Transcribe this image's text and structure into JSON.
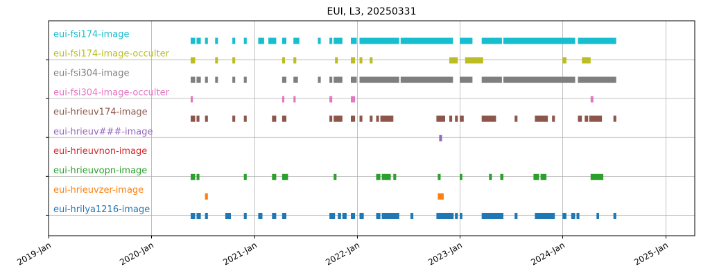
{
  "chart_data": {
    "type": "timeline",
    "title": "EUI, L3, 20250331",
    "xlabel": "",
    "ylabel": "",
    "xlim": [
      "2019-01-01",
      "2025-04-15"
    ],
    "x_ticks": [
      "2019-Jan",
      "2020-Jan",
      "2021-Jan",
      "2022-Jan",
      "2023-Jan",
      "2024-Jan",
      "2025-Jan"
    ],
    "x_tick_dates": [
      "2019-01-01",
      "2020-01-01",
      "2021-01-01",
      "2022-01-01",
      "2023-01-01",
      "2024-01-01",
      "2025-01-01"
    ],
    "grid": true,
    "legend": "labels inside plot, left",
    "series": [
      {
        "name": "eui-fsi174-image",
        "color": "#17becf",
        "intervals": [
          [
            "2020-05-20",
            "2020-06-05"
          ],
          [
            "2020-06-10",
            "2020-06-25"
          ],
          [
            "2020-07-10",
            "2020-07-20"
          ],
          [
            "2020-08-15",
            "2020-08-25"
          ],
          [
            "2020-10-15",
            "2020-10-25"
          ],
          [
            "2020-11-25",
            "2020-12-05"
          ],
          [
            "2021-01-15",
            "2021-02-05"
          ],
          [
            "2021-02-20",
            "2021-03-20"
          ],
          [
            "2021-04-10",
            "2021-04-25"
          ],
          [
            "2021-05-20",
            "2021-06-10"
          ],
          [
            "2021-08-15",
            "2021-08-25"
          ],
          [
            "2021-09-25",
            "2021-10-05"
          ],
          [
            "2021-10-10",
            "2021-11-10"
          ],
          [
            "2021-12-10",
            "2021-12-31"
          ],
          [
            "2022-01-10",
            "2022-05-31"
          ],
          [
            "2022-06-05",
            "2022-12-08"
          ],
          [
            "2023-01-01",
            "2023-02-15"
          ],
          [
            "2023-03-20",
            "2023-05-31"
          ],
          [
            "2023-06-05",
            "2024-02-15"
          ],
          [
            "2024-02-25",
            "2024-07-10"
          ]
        ]
      },
      {
        "name": "eui-fsi174-image-occulter",
        "color": "#bcbd22",
        "intervals": [
          [
            "2020-05-20",
            "2020-06-05"
          ],
          [
            "2020-08-15",
            "2020-08-25"
          ],
          [
            "2020-10-15",
            "2020-10-25"
          ],
          [
            "2021-04-10",
            "2021-04-20"
          ],
          [
            "2021-05-20",
            "2021-05-30"
          ],
          [
            "2021-10-15",
            "2021-10-25"
          ],
          [
            "2021-12-10",
            "2021-12-25"
          ],
          [
            "2022-01-10",
            "2022-01-20"
          ],
          [
            "2022-02-15",
            "2022-02-25"
          ],
          [
            "2022-11-25",
            "2022-12-25"
          ],
          [
            "2023-01-20",
            "2023-03-25"
          ],
          [
            "2024-01-01",
            "2024-01-15"
          ],
          [
            "2024-03-10",
            "2024-04-10"
          ]
        ]
      },
      {
        "name": "eui-fsi304-image",
        "color": "#7f7f7f",
        "intervals": [
          [
            "2020-05-20",
            "2020-06-05"
          ],
          [
            "2020-06-10",
            "2020-06-25"
          ],
          [
            "2020-07-10",
            "2020-07-20"
          ],
          [
            "2020-08-15",
            "2020-08-25"
          ],
          [
            "2020-10-15",
            "2020-10-25"
          ],
          [
            "2020-11-25",
            "2020-12-05"
          ],
          [
            "2021-04-10",
            "2021-04-25"
          ],
          [
            "2021-05-20",
            "2021-06-05"
          ],
          [
            "2021-08-15",
            "2021-08-25"
          ],
          [
            "2021-09-25",
            "2021-10-05"
          ],
          [
            "2021-10-10",
            "2021-11-10"
          ],
          [
            "2021-12-10",
            "2021-12-31"
          ],
          [
            "2022-01-10",
            "2022-05-31"
          ],
          [
            "2022-06-05",
            "2022-12-08"
          ],
          [
            "2023-01-01",
            "2023-02-15"
          ],
          [
            "2023-03-20",
            "2023-05-31"
          ],
          [
            "2023-06-05",
            "2024-02-15"
          ],
          [
            "2024-02-25",
            "2024-07-10"
          ]
        ]
      },
      {
        "name": "eui-fsi304-image-occulter",
        "color": "#e377c2",
        "intervals": [
          [
            "2020-05-20",
            "2020-05-28"
          ],
          [
            "2021-04-10",
            "2021-04-18"
          ],
          [
            "2021-05-20",
            "2021-05-28"
          ],
          [
            "2021-09-25",
            "2021-10-05"
          ],
          [
            "2021-12-10",
            "2021-12-25"
          ],
          [
            "2024-04-10",
            "2024-04-20"
          ]
        ]
      },
      {
        "name": "eui-hrieuv174-image",
        "color": "#8c564b",
        "intervals": [
          [
            "2020-05-20",
            "2020-06-05"
          ],
          [
            "2020-06-10",
            "2020-06-20"
          ],
          [
            "2020-07-10",
            "2020-07-20"
          ],
          [
            "2020-10-15",
            "2020-10-25"
          ],
          [
            "2020-11-25",
            "2020-12-05"
          ],
          [
            "2021-03-05",
            "2021-03-20"
          ],
          [
            "2021-04-10",
            "2021-04-25"
          ],
          [
            "2021-09-25",
            "2021-10-05"
          ],
          [
            "2021-10-10",
            "2021-11-10"
          ],
          [
            "2021-12-10",
            "2021-12-25"
          ],
          [
            "2022-01-10",
            "2022-01-20"
          ],
          [
            "2022-02-15",
            "2022-02-25"
          ],
          [
            "2022-03-10",
            "2022-03-20"
          ],
          [
            "2022-03-25",
            "2022-05-10"
          ],
          [
            "2022-10-10",
            "2022-11-10"
          ],
          [
            "2022-11-25",
            "2022-12-05"
          ],
          [
            "2022-12-15",
            "2022-12-25"
          ],
          [
            "2023-01-01",
            "2023-01-15"
          ],
          [
            "2023-03-20",
            "2023-05-10"
          ],
          [
            "2023-07-15",
            "2023-07-25"
          ],
          [
            "2023-09-25",
            "2023-11-10"
          ],
          [
            "2023-11-25",
            "2023-12-05"
          ],
          [
            "2024-02-25",
            "2024-03-10"
          ],
          [
            "2024-03-20",
            "2024-04-01"
          ],
          [
            "2024-04-05",
            "2024-05-20"
          ],
          [
            "2024-06-30",
            "2024-07-10"
          ]
        ]
      },
      {
        "name": "eui-hrieuv###-image",
        "color": "#9467bd",
        "intervals": [
          [
            "2022-10-20",
            "2022-10-30"
          ]
        ]
      },
      {
        "name": "eui-hrieuvnon-image",
        "color": "#d62728",
        "intervals": []
      },
      {
        "name": "eui-hrieuvopn-image",
        "color": "#2ca02c",
        "intervals": [
          [
            "2020-05-20",
            "2020-06-05"
          ],
          [
            "2020-06-10",
            "2020-06-20"
          ],
          [
            "2020-11-25",
            "2020-12-05"
          ],
          [
            "2021-03-05",
            "2021-03-20"
          ],
          [
            "2021-04-10",
            "2021-05-01"
          ],
          [
            "2021-10-10",
            "2021-10-20"
          ],
          [
            "2022-03-10",
            "2022-03-25"
          ],
          [
            "2022-03-30",
            "2022-05-01"
          ],
          [
            "2022-05-10",
            "2022-05-20"
          ],
          [
            "2022-10-15",
            "2022-10-25"
          ],
          [
            "2023-01-01",
            "2023-01-10"
          ],
          [
            "2023-04-15",
            "2023-04-25"
          ],
          [
            "2023-05-25",
            "2023-06-05"
          ],
          [
            "2023-09-20",
            "2023-10-10"
          ],
          [
            "2023-10-15",
            "2023-11-05"
          ],
          [
            "2024-04-10",
            "2024-05-25"
          ]
        ]
      },
      {
        "name": "eui-hrieuvzer-image",
        "color": "#ff7f0e",
        "intervals": [
          [
            "2020-07-10",
            "2020-07-20"
          ],
          [
            "2022-10-15",
            "2022-11-05"
          ]
        ]
      },
      {
        "name": "eui-hrilya1216-image",
        "color": "#1f77b4",
        "intervals": [
          [
            "2020-05-20",
            "2020-06-05"
          ],
          [
            "2020-06-10",
            "2020-06-25"
          ],
          [
            "2020-07-10",
            "2020-07-20"
          ],
          [
            "2020-09-20",
            "2020-10-10"
          ],
          [
            "2020-11-25",
            "2020-12-05"
          ],
          [
            "2021-01-15",
            "2021-01-30"
          ],
          [
            "2021-03-05",
            "2021-03-20"
          ],
          [
            "2021-04-10",
            "2021-04-25"
          ],
          [
            "2021-09-25",
            "2021-10-15"
          ],
          [
            "2021-10-25",
            "2021-11-05"
          ],
          [
            "2021-11-10",
            "2021-11-25"
          ],
          [
            "2021-12-10",
            "2021-12-25"
          ],
          [
            "2022-01-10",
            "2022-01-25"
          ],
          [
            "2022-03-10",
            "2022-03-25"
          ],
          [
            "2022-03-30",
            "2022-05-31"
          ],
          [
            "2022-07-10",
            "2022-07-20"
          ],
          [
            "2022-10-10",
            "2022-12-10"
          ],
          [
            "2022-12-15",
            "2022-12-25"
          ],
          [
            "2023-01-01",
            "2023-01-10"
          ],
          [
            "2023-03-20",
            "2023-06-05"
          ],
          [
            "2023-07-15",
            "2023-07-25"
          ],
          [
            "2023-09-25",
            "2023-12-05"
          ],
          [
            "2024-01-01",
            "2024-01-15"
          ],
          [
            "2024-02-01",
            "2024-02-15"
          ],
          [
            "2024-02-20",
            "2024-03-01"
          ],
          [
            "2024-05-01",
            "2024-05-10"
          ],
          [
            "2024-06-30",
            "2024-07-10"
          ]
        ]
      }
    ]
  }
}
